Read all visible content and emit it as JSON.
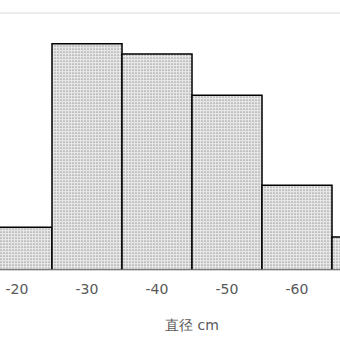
{
  "chart_data": {
    "type": "bar",
    "x_label": "直径 cm",
    "categories": [
      "-20",
      "-30",
      "-40",
      "-50",
      "-60",
      null
    ],
    "values": [
      0.83,
      4.4,
      4.2,
      3.4,
      1.65,
      0.64
    ],
    "color": "#e6e6e6",
    "ylim": [
      0,
      5
    ],
    "yticks": [
      0,
      1,
      2,
      3,
      4,
      5
    ],
    "grid": true,
    "tick_labels": "x"
  }
}
